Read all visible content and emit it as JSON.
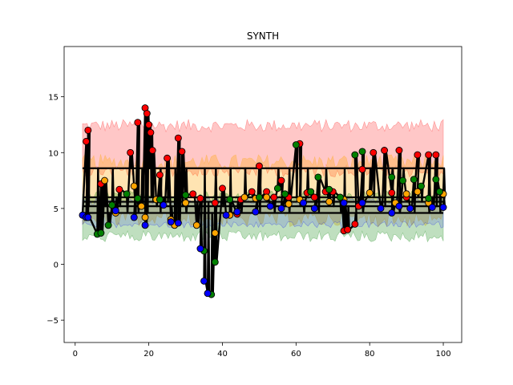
{
  "chart_data": {
    "type": "line",
    "title": "SYNTH",
    "xlabel": "",
    "ylabel": "",
    "xlim": [
      -3,
      105
    ],
    "ylim": [
      -7,
      19.5
    ],
    "xticks": [
      0,
      20,
      40,
      60,
      80,
      100
    ],
    "yticks": [
      -5,
      0,
      5,
      10,
      15
    ],
    "grid": false,
    "legend": "none",
    "colors": {
      "red": "#ff0000",
      "orange": "#ffa500",
      "green": "#008000",
      "blue": "#0000ff",
      "line": "#000000"
    },
    "bands": [
      {
        "color": "#ff0000",
        "lower": 8.5,
        "upper": 12.3,
        "opacity": 0.22
      },
      {
        "color": "#ffa500",
        "lower": 4.2,
        "upper": 9.0,
        "opacity": 0.3
      },
      {
        "color": "#008000",
        "lower": 2.6,
        "upper": 6.0,
        "opacity": 0.25
      },
      {
        "color": "#0000ff",
        "lower": 3.6,
        "upper": 5.6,
        "opacity": 0.12
      }
    ],
    "level_lines": [
      8.6,
      6.0,
      5.6,
      5.2,
      4.6
    ],
    "series": [
      {
        "color": "#ff0000",
        "points": [
          [
            3,
            11
          ],
          [
            3.5,
            12
          ],
          [
            7,
            7.2
          ],
          [
            12,
            6.7
          ],
          [
            15,
            10
          ],
          [
            17,
            12.7
          ],
          [
            19,
            14
          ],
          [
            19.5,
            13.5
          ],
          [
            20,
            12.5
          ],
          [
            20.5,
            11.8
          ],
          [
            21,
            10.2
          ],
          [
            23,
            8
          ],
          [
            25,
            9.5
          ],
          [
            28,
            11.3
          ],
          [
            29,
            10.1
          ],
          [
            32,
            6.3
          ],
          [
            34,
            5.9
          ],
          [
            38,
            5.5
          ],
          [
            40,
            6.8
          ],
          [
            44,
            4.5
          ],
          [
            45,
            5.8
          ],
          [
            48,
            6.5
          ],
          [
            50,
            8.8
          ],
          [
            52,
            6.5
          ],
          [
            54,
            6.0
          ],
          [
            56,
            7.5
          ],
          [
            58,
            6.0
          ],
          [
            61,
            10.8
          ],
          [
            63,
            6.4
          ],
          [
            65,
            6.0
          ],
          [
            68,
            6.5
          ],
          [
            70,
            6.5
          ],
          [
            73,
            3.0
          ],
          [
            74,
            3.1
          ],
          [
            76,
            3.6
          ],
          [
            77,
            5.2
          ],
          [
            78,
            8.5
          ],
          [
            81,
            10.0
          ],
          [
            84,
            10.2
          ],
          [
            86,
            6.4
          ],
          [
            88,
            10.2
          ],
          [
            90,
            6.0
          ],
          [
            93,
            9.8
          ],
          [
            96,
            9.8
          ],
          [
            98,
            9.8
          ]
        ]
      },
      {
        "color": "#ffa500",
        "points": [
          [
            8,
            7.5
          ],
          [
            11,
            4.6
          ],
          [
            16,
            7.0
          ],
          [
            18,
            5.2
          ],
          [
            19,
            4.2
          ],
          [
            22,
            5.8
          ],
          [
            26,
            4.0
          ],
          [
            27,
            3.5
          ],
          [
            30,
            5.5
          ],
          [
            33,
            3.5
          ],
          [
            38,
            2.8
          ],
          [
            42,
            4.4
          ],
          [
            46,
            6.0
          ],
          [
            49,
            5.9
          ],
          [
            52,
            6.0
          ],
          [
            58,
            5.4
          ],
          [
            61,
            5.8
          ],
          [
            69,
            5.6
          ],
          [
            73,
            5.8
          ],
          [
            80,
            6.4
          ],
          [
            87,
            5.5
          ],
          [
            90,
            6.3
          ],
          [
            93,
            6.5
          ],
          [
            96,
            5.5
          ],
          [
            100,
            6.3
          ]
        ]
      },
      {
        "color": "#008000",
        "points": [
          [
            6,
            2.7
          ],
          [
            7,
            2.8
          ],
          [
            9,
            3.5
          ],
          [
            10,
            5.3
          ],
          [
            14,
            6.3
          ],
          [
            17,
            5.9
          ],
          [
            23,
            5.8
          ],
          [
            30,
            6.2
          ],
          [
            35,
            1.2
          ],
          [
            36,
            -2.6
          ],
          [
            37,
            -2.7
          ],
          [
            38,
            0.2
          ],
          [
            42,
            5.8
          ],
          [
            50,
            6.0
          ],
          [
            55,
            6.8
          ],
          [
            57,
            6.3
          ],
          [
            60,
            10.7
          ],
          [
            64,
            6.5
          ],
          [
            66,
            7.8
          ],
          [
            69,
            6.7
          ],
          [
            72,
            6.0
          ],
          [
            76,
            9.8
          ],
          [
            78,
            10.1
          ],
          [
            86,
            7.8
          ],
          [
            89,
            7.5
          ],
          [
            92,
            7.6
          ],
          [
            94,
            7.0
          ],
          [
            96,
            5.9
          ],
          [
            98,
            7.6
          ],
          [
            99,
            6.5
          ]
        ]
      },
      {
        "color": "#0000ff",
        "points": [
          [
            2,
            4.4
          ],
          [
            3,
            4.2
          ],
          [
            3.5,
            4.2
          ],
          [
            11,
            4.8
          ],
          [
            16,
            4.2
          ],
          [
            19,
            3.5
          ],
          [
            24,
            5.3
          ],
          [
            26,
            3.8
          ],
          [
            28,
            3.7
          ],
          [
            34,
            1.4
          ],
          [
            35,
            -1.5
          ],
          [
            36,
            -2.6
          ],
          [
            41,
            4.4
          ],
          [
            44,
            4.7
          ],
          [
            49,
            4.7
          ],
          [
            53,
            5.2
          ],
          [
            56,
            5.0
          ],
          [
            62,
            5.5
          ],
          [
            65,
            5.0
          ],
          [
            73,
            5.5
          ],
          [
            78,
            5.5
          ],
          [
            83,
            5.0
          ],
          [
            86,
            4.6
          ],
          [
            88,
            5.2
          ],
          [
            91,
            5.0
          ],
          [
            97,
            5.1
          ],
          [
            100,
            5.1
          ]
        ]
      }
    ]
  }
}
